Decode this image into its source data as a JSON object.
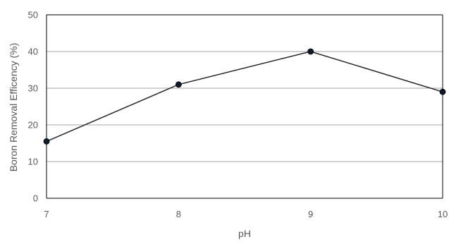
{
  "chart_data": {
    "type": "line",
    "title": "",
    "xlabel": "pH",
    "ylabel": "Boron Removal Efficency (%)",
    "x": [
      7,
      8,
      9,
      10
    ],
    "series": [
      {
        "values": [
          15.5,
          31,
          40,
          29
        ]
      }
    ],
    "x_ticks": [
      "7",
      "8",
      "9",
      "10"
    ],
    "y_ticks": [
      "0",
      "10",
      "20",
      "30",
      "40",
      "50"
    ],
    "xlim": [
      7,
      10
    ],
    "ylim": [
      0,
      50
    ],
    "grid": "horizontal",
    "legend": "none",
    "colors": {
      "line": "#262626",
      "marker": "#0b1a2e",
      "grid": "#a6a6a6",
      "axis": "#000000",
      "text": "#595959"
    }
  }
}
